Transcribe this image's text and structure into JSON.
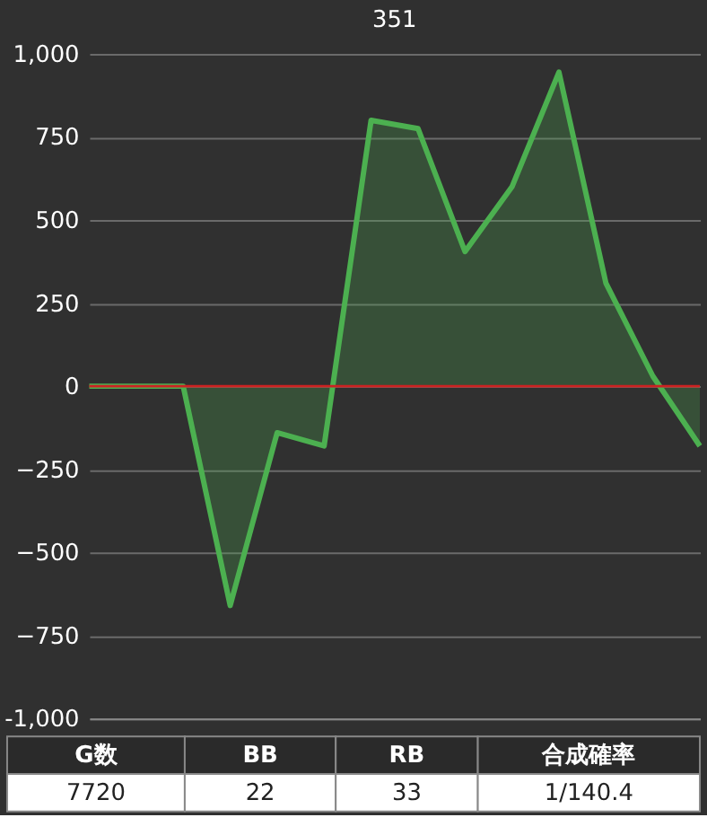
{
  "chart_data": {
    "type": "area",
    "title": "351",
    "categories": [
      null,
      null,
      null,
      null,
      null,
      null,
      null,
      null,
      null,
      null,
      null,
      null,
      null,
      null
    ],
    "series": [
      {
        "color": "#4cb050",
        "values": [
          0,
          0,
          0,
          -660,
          -140,
          -180,
          800,
          775,
          405,
          600,
          945,
          310,
          30,
          -180
        ]
      }
    ],
    "ylim": [
      -1000,
      1000
    ],
    "yticks": [
      {
        "value": -1000,
        "label": "-1,000"
      },
      -750,
      -500,
      -250,
      0,
      250,
      500,
      750,
      {
        "value": 1000,
        "label": "1,000"
      }
    ],
    "grid": "y",
    "tick_labels": "y",
    "ref_lines": [
      {
        "axis": "y",
        "value": 0,
        "color": "#cc2222"
      }
    ],
    "annotations": [
      "G数",
      "BB",
      "RB",
      "合成確率",
      "7720",
      "22",
      "33",
      "1/140.4"
    ]
  }
}
